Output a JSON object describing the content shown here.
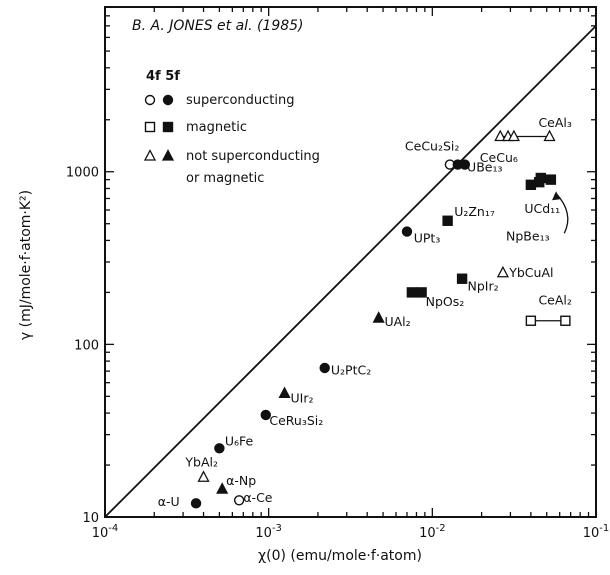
{
  "chart_data": {
    "type": "scatter",
    "title": "B. A. JONES et al. (1985)",
    "xlabel": "χ(0) (emu/mole·f·atom)",
    "ylabel": "γ (mJ/mole·f·atom·K²)",
    "xscale": "log",
    "yscale": "log",
    "xlim": [
      0.0001,
      0.1
    ],
    "ylim": [
      10,
      9000
    ],
    "x_ticks": [
      {
        "value": 0.0001,
        "label": "10",
        "exp": "-4"
      },
      {
        "value": 0.001,
        "label": "10",
        "exp": "-3"
      },
      {
        "value": 0.01,
        "label": "10",
        "exp": "-2"
      },
      {
        "value": 0.1,
        "label": "10",
        "exp": "-1"
      }
    ],
    "y_ticks": [
      {
        "value": 10,
        "label": "10"
      },
      {
        "value": 100,
        "label": "100"
      },
      {
        "value": 1000,
        "label": "1000"
      }
    ],
    "legend": {
      "header": "4f 5f",
      "entries": [
        {
          "label": "superconducting",
          "open": "circle",
          "filled": "circle"
        },
        {
          "label": "magnetic",
          "open": "square",
          "filled": "square"
        },
        {
          "label": "not superconducting",
          "label2": "or magnetic",
          "open": "triangle",
          "filled": "triangle"
        }
      ]
    },
    "reference_line": {
      "x": [
        0.0001,
        0.1
      ],
      "y": [
        10,
        7000
      ]
    },
    "points": [
      {
        "label": "α-U",
        "x": 0.00036,
        "y": 12,
        "shape": "circle",
        "filled": true
      },
      {
        "label": "U₆Fe",
        "x": 0.0005,
        "y": 25,
        "shape": "circle",
        "filled": true
      },
      {
        "label": "YbAl₂",
        "x": 0.0004,
        "y": 17,
        "shape": "triangle",
        "filled": false
      },
      {
        "label": "α-Np",
        "x": 0.00052,
        "y": 14.5,
        "shape": "triangle",
        "filled": true
      },
      {
        "label": "α-Ce",
        "x": 0.00066,
        "y": 12.5,
        "shape": "circle",
        "filled": false
      },
      {
        "label": "CeRu₃Si₂",
        "x": 0.00096,
        "y": 39,
        "shape": "circle",
        "filled": true
      },
      {
        "label": "UIr₂",
        "x": 0.00125,
        "y": 52,
        "shape": "triangle",
        "filled": true
      },
      {
        "label": "U₂PtC₂",
        "x": 0.0022,
        "y": 73,
        "shape": "circle",
        "filled": true
      },
      {
        "label": "UAl₂",
        "x": 0.0047,
        "y": 142,
        "shape": "triangle",
        "filled": true
      },
      {
        "label": "UPt₃",
        "x": 0.007,
        "y": 450,
        "shape": "circle",
        "filled": true
      },
      {
        "label": "NpOs₂",
        "x": 0.0075,
        "y": 200,
        "shape": "square",
        "filled": true
      },
      {
        "label": "NpOs₂",
        "x": 0.0086,
        "y": 200,
        "shape": "square",
        "filled": true
      },
      {
        "label": "U₂Zn₁₇",
        "x": 0.0124,
        "y": 520,
        "shape": "square",
        "filled": true
      },
      {
        "label": "CeCu₂Si₂",
        "x": 0.0128,
        "y": 1100,
        "shape": "circle",
        "filled": false
      },
      {
        "label": "UBe₁₃",
        "x": 0.0143,
        "y": 1100,
        "shape": "circle",
        "filled": true
      },
      {
        "label": "UBe₁₃",
        "x": 0.0158,
        "y": 1100,
        "shape": "circle",
        "filled": true
      },
      {
        "label": "NpIr₂",
        "x": 0.0152,
        "y": 240,
        "shape": "square",
        "filled": true
      },
      {
        "label": "YbCuAl",
        "x": 0.027,
        "y": 260,
        "shape": "triangle",
        "filled": false
      },
      {
        "label": "CeCu₆",
        "x": 0.026,
        "y": 1600,
        "shape": "triangle",
        "filled": false
      },
      {
        "label": "CeCu₆",
        "x": 0.029,
        "y": 1600,
        "shape": "triangle",
        "filled": false
      },
      {
        "label": "CeAl₃",
        "x": 0.0315,
        "y": 1600,
        "shape": "triangle",
        "filled": false
      },
      {
        "label": "CeAl₃",
        "x": 0.052,
        "y": 1600,
        "shape": "triangle",
        "filled": false
      },
      {
        "label": "UCd₁₁",
        "x": 0.04,
        "y": 840,
        "shape": "square",
        "filled": true
      },
      {
        "label": "NpBe₁₃",
        "x": 0.045,
        "y": 870,
        "shape": "square",
        "filled": true
      },
      {
        "label": "NpBe₁₃",
        "x": 0.046,
        "y": 920,
        "shape": "square",
        "filled": true
      },
      {
        "label": "NpBe₁₃",
        "x": 0.053,
        "y": 900,
        "shape": "square",
        "filled": true
      },
      {
        "label": "CeAl₂",
        "x": 0.04,
        "y": 137,
        "shape": "square",
        "filled": false
      },
      {
        "label": "CeAl₂",
        "x": 0.065,
        "y": 137,
        "shape": "square",
        "filled": false
      }
    ],
    "connectors": [
      {
        "from": [
          0.0128,
          1100
        ],
        "to": [
          0.0158,
          1100
        ]
      },
      {
        "from": [
          0.0315,
          1600
        ],
        "to": [
          0.052,
          1600
        ]
      },
      {
        "from": [
          0.04,
          137
        ],
        "to": [
          0.065,
          137
        ]
      },
      {
        "from": [
          0.0075,
          200
        ],
        "to": [
          0.0086,
          200
        ]
      },
      {
        "from": [
          0.026,
          1600
        ],
        "to": [
          0.029,
          1600
        ]
      }
    ],
    "labels": [
      {
        "text": "α-U",
        "x": 0.00021,
        "y": 11.6
      },
      {
        "text": "U₆Fe",
        "x": 0.00054,
        "y": 26
      },
      {
        "text": "YbAl₂",
        "x": 0.00031,
        "y": 19.6
      },
      {
        "text": "α-Np",
        "x": 0.00055,
        "y": 15.3
      },
      {
        "text": "α-Ce",
        "x": 0.0007,
        "y": 12.2
      },
      {
        "text": "CeRu₃Si₂",
        "x": 0.00101,
        "y": 34
      },
      {
        "text": "UIr₂",
        "x": 0.00136,
        "y": 46
      },
      {
        "text": "U₂PtC₂",
        "x": 0.0024,
        "y": 67
      },
      {
        "text": "UAl₂",
        "x": 0.0051,
        "y": 128
      },
      {
        "text": "UPt₃",
        "x": 0.0077,
        "y": 388
      },
      {
        "text": "NpOs₂",
        "x": 0.0091,
        "y": 167
      },
      {
        "text": "U₂Zn₁₇",
        "x": 0.0136,
        "y": 555
      },
      {
        "text": "CeCu₂Si₂",
        "x": 0.0068,
        "y": 1330
      },
      {
        "text": "UBe₁₃",
        "x": 0.0163,
        "y": 1000
      },
      {
        "text": "NpIr₂",
        "x": 0.0164,
        "y": 205
      },
      {
        "text": "YbCuAl",
        "x": 0.0295,
        "y": 245
      },
      {
        "text": "CeCu₆",
        "x": 0.0195,
        "y": 1140
      },
      {
        "text": "CeAl₃",
        "x": 0.0445,
        "y": 1810
      },
      {
        "text": "UCd₁₁",
        "x": 0.0365,
        "y": 575
      },
      {
        "text": "NpBe₁₃",
        "x": 0.0282,
        "y": 400
      },
      {
        "text": "CeAl₂",
        "x": 0.0445,
        "y": 170
      }
    ],
    "annotation_arrow": {
      "from": [
        0.064,
        440
      ],
      "to": [
        0.057,
        750
      ]
    }
  }
}
